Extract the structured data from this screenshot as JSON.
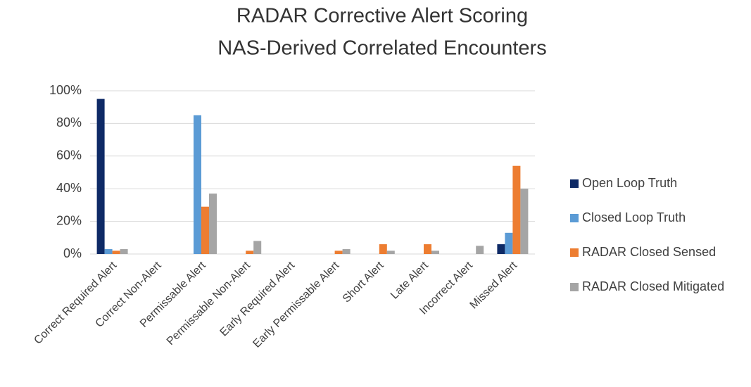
{
  "chart_data": {
    "type": "bar",
    "title": "RADAR Corrective Alert Scoring",
    "subtitle": "NAS-Derived Correlated Encounters",
    "categories": [
      "Correct Required Alert",
      "Correct Non-Alert",
      "Permissable Alert",
      "Permissable Non-Alert",
      "Early Required Alert",
      "Early Permissable Alert",
      "Short Alert",
      "Late Alert",
      "Incorrect Alert",
      "Missed Alert"
    ],
    "series": [
      {
        "name": "Open Loop Truth",
        "color": "#0e2a66",
        "values": [
          95,
          0,
          0,
          0,
          0,
          0,
          0,
          0,
          0,
          6
        ]
      },
      {
        "name": "Closed Loop Truth",
        "color": "#5b9bd5",
        "values": [
          3,
          0,
          85,
          0,
          0,
          0,
          0,
          0,
          0,
          13
        ]
      },
      {
        "name": "RADAR Closed Sensed",
        "color": "#ed7d31",
        "values": [
          2,
          0,
          29,
          2,
          0,
          2,
          6,
          6,
          0,
          54
        ]
      },
      {
        "name": "RADAR Closed Mitigated",
        "color": "#a5a5a5",
        "values": [
          3,
          0,
          37,
          8,
          0,
          3,
          2,
          2,
          5,
          40
        ]
      }
    ],
    "ylim": [
      0,
      100
    ],
    "yticks": [
      {
        "value": 0,
        "label": "0%"
      },
      {
        "value": 20,
        "label": "20%"
      },
      {
        "value": 40,
        "label": "40%"
      },
      {
        "value": 60,
        "label": "60%"
      },
      {
        "value": 80,
        "label": "80%"
      },
      {
        "value": 100,
        "label": "100%"
      }
    ],
    "grid": true,
    "legend": "right"
  }
}
